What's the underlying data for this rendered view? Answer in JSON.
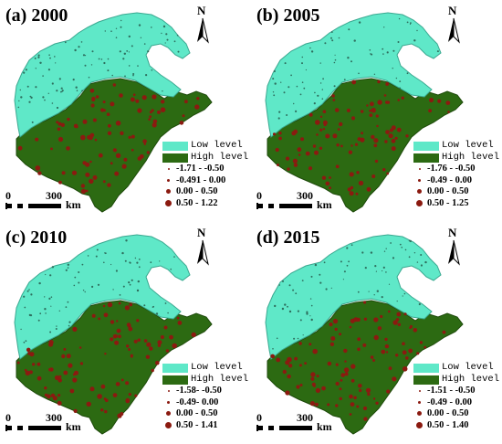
{
  "colors": {
    "low": "#5fe8c8",
    "high": "#2c6a12",
    "point": "#8b1a10",
    "border": "#555555"
  },
  "north_label": "N",
  "scale": {
    "zero": "0",
    "distance": "300",
    "unit": "km"
  },
  "legend_common": {
    "low_label": "Low level",
    "high_label": "High level"
  },
  "panels": [
    {
      "title": "(a) 2000",
      "classes": [
        "-1.71 - -0.50",
        "-0.491 - 0.00",
        "0.00 - 0.50",
        "0.50 - 1.22"
      ]
    },
    {
      "title": "(b) 2005",
      "classes": [
        "-1.76 - -0.50",
        "-0.49 - 0.00",
        "0.00 - 0.50",
        "0.50 - 1.25"
      ]
    },
    {
      "title": "(c) 2010",
      "classes": [
        "-1.58- -0.50",
        "-0.49- 0.00",
        "0.00 - 0.50",
        "0.50 - 1.41"
      ]
    },
    {
      "title": "(d) 2015",
      "classes": [
        "-1.51 - -0.50",
        "-0.49 - 0.00",
        "0.00 - 0.50",
        "0.50 - 1.40"
      ]
    }
  ]
}
